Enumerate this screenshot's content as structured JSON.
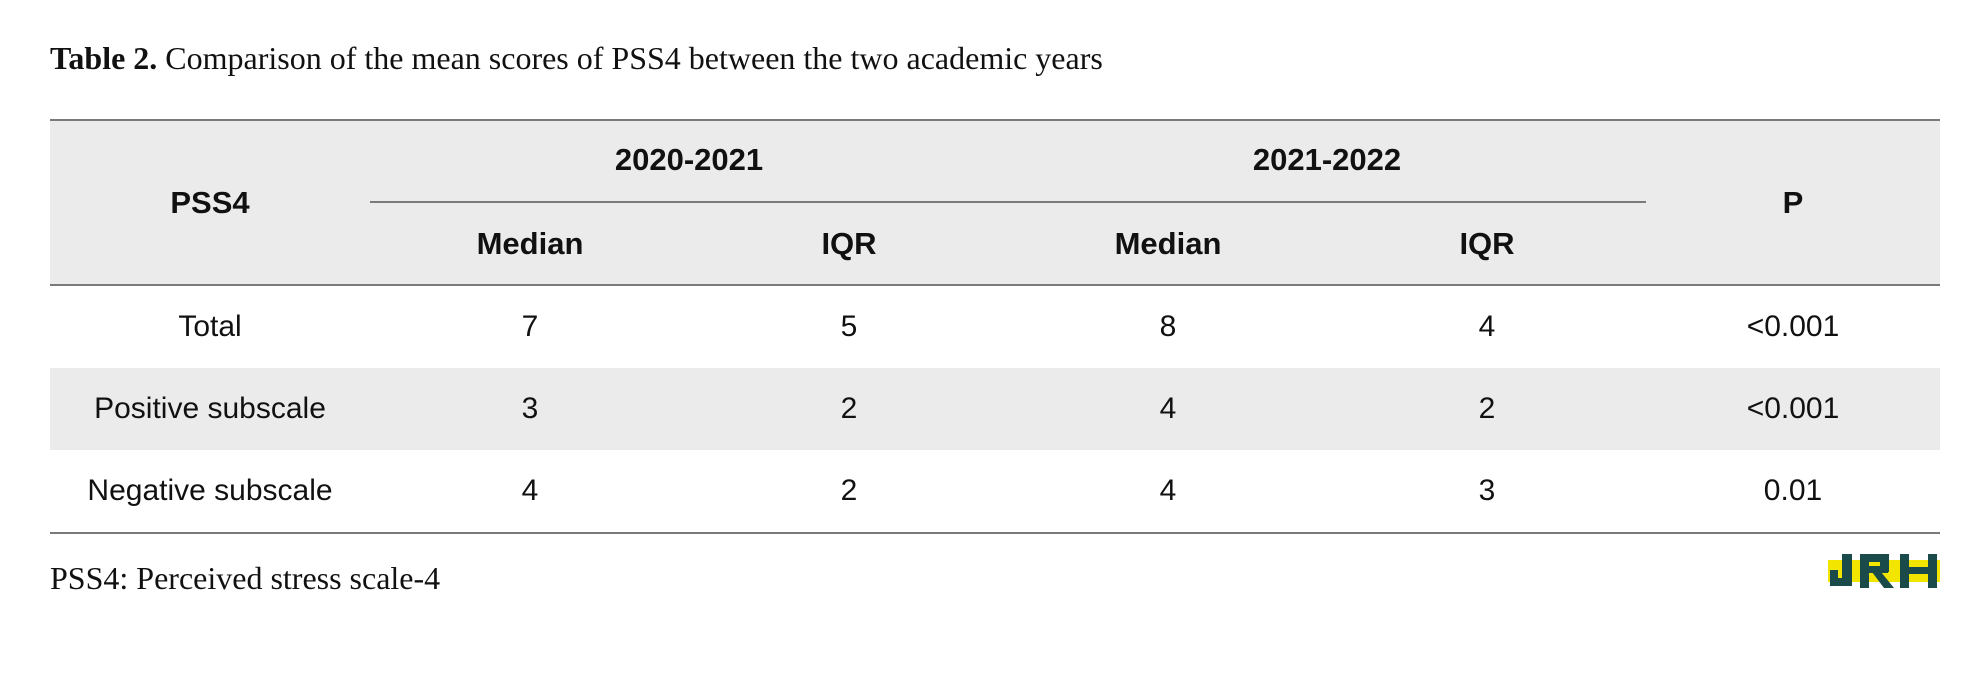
{
  "caption": {
    "label": "Table 2.",
    "text": "Comparison of the mean scores of PSS4 between the two academic years"
  },
  "table": {
    "row_header": "PSS4",
    "groups": [
      "2020-2021",
      "2021-2022"
    ],
    "sub_headers": [
      "Median",
      "IQR",
      "Median",
      "IQR"
    ],
    "p_header": "P",
    "rows": [
      {
        "label": "Total",
        "values": [
          "7",
          "5",
          "8",
          "4"
        ],
        "p": "<0.001"
      },
      {
        "label": "Positive subscale",
        "values": [
          "3",
          "2",
          "4",
          "2"
        ],
        "p": "<0.001"
      },
      {
        "label": "Negative subscale",
        "values": [
          "4",
          "2",
          "4",
          "3"
        ],
        "p": "0.01"
      }
    ]
  },
  "footnote": "PSS4: Perceived stress scale-4",
  "logo": {
    "text": "JRH",
    "colors": {
      "fill": "#1a4a4a",
      "highlight": "#f2e600"
    }
  },
  "colors": {
    "header_bg": "#ebebeb",
    "rule": "#7a7a7a",
    "text": "#111111"
  }
}
